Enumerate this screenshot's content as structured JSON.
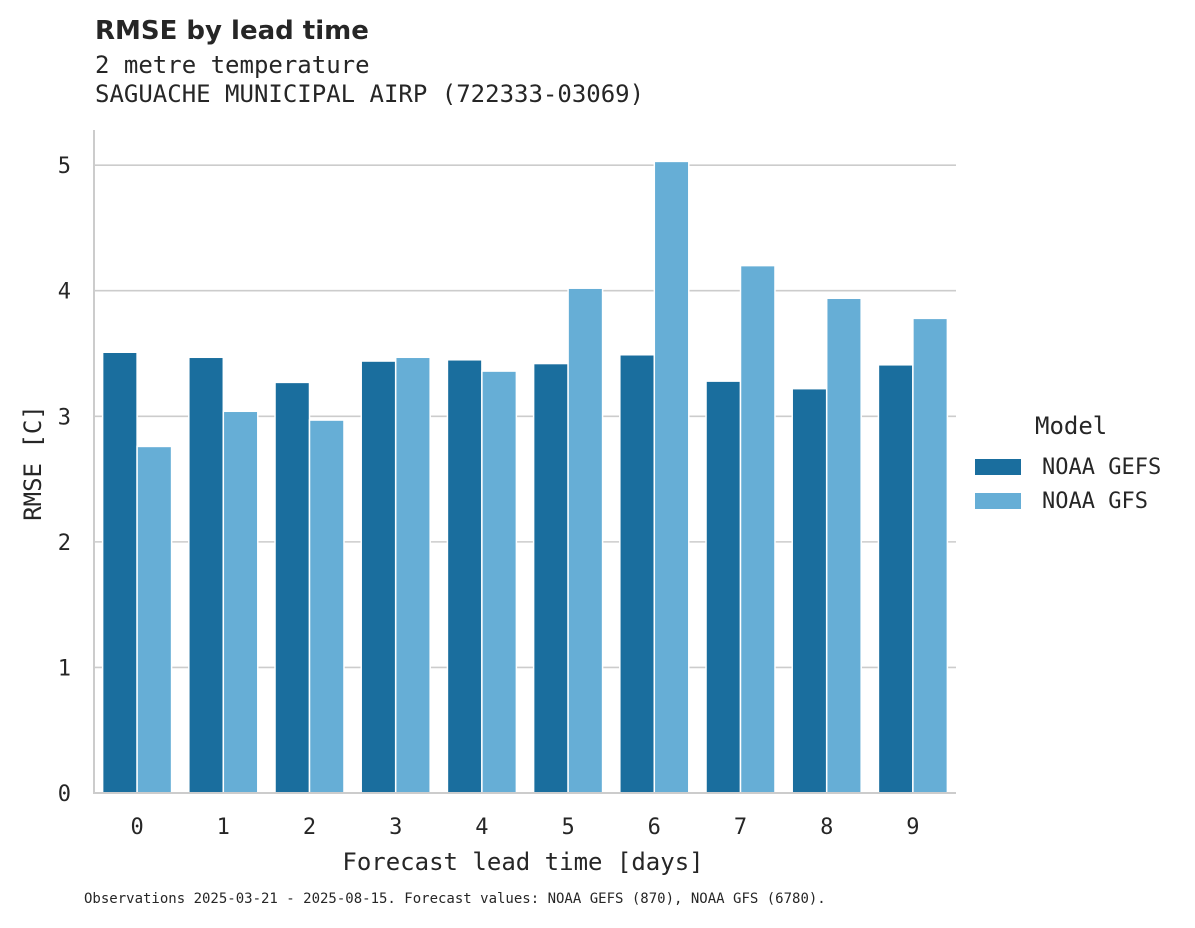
{
  "chart_data": {
    "type": "bar",
    "title": "RMSE by lead time",
    "subtitle": [
      "2 metre temperature",
      "SAGUACHE MUNICIPAL AIRP (722333-03069)"
    ],
    "xlabel": "Forecast lead time [days]",
    "ylabel": "RMSE [C]",
    "categories": [
      "0",
      "1",
      "2",
      "3",
      "4",
      "5",
      "6",
      "7",
      "8",
      "9"
    ],
    "yticks": [
      "0",
      "1",
      "2",
      "3",
      "4",
      "5"
    ],
    "ylim": [
      0,
      5.28
    ],
    "grid": "horizontal",
    "legend": {
      "title": "Model",
      "placement": "right"
    },
    "series": [
      {
        "name": "NOAA GEFS",
        "color": "#1a6e9e",
        "values": [
          3.51,
          3.47,
          3.27,
          3.44,
          3.45,
          3.42,
          3.49,
          3.28,
          3.22,
          3.41
        ]
      },
      {
        "name": "NOAA GFS",
        "color": "#66aed6",
        "values": [
          2.76,
          3.04,
          2.97,
          3.47,
          3.36,
          4.02,
          5.03,
          4.2,
          3.94,
          3.78
        ]
      }
    ],
    "footnote": "Observations 2025-03-21 - 2025-08-15. Forecast values: NOAA GEFS (870), NOAA GFS (6780)."
  }
}
